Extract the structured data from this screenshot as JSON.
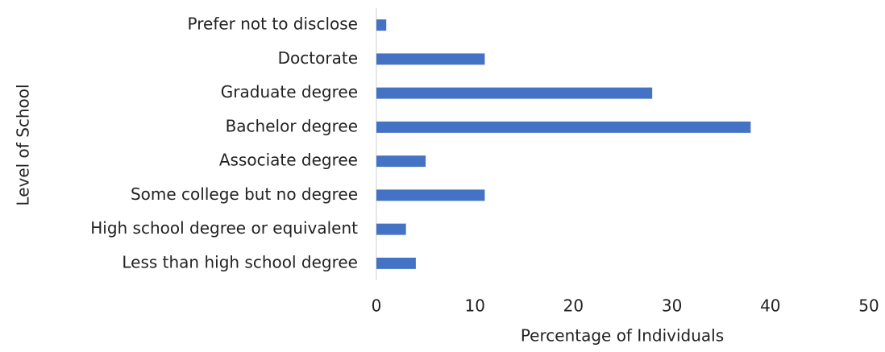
{
  "chart_data": {
    "type": "bar",
    "orientation": "horizontal",
    "xlabel": "Percentage of Individuals",
    "ylabel": "Level of School",
    "categories": [
      "Less than high school degree",
      "High school degree or equivalent",
      "Some college but no degree",
      "Associate degree",
      "Bachelor degree",
      "Graduate degree",
      "Doctorate",
      "Prefer not to disclose"
    ],
    "values": [
      4,
      3,
      11,
      5,
      38,
      28,
      11,
      1
    ],
    "color": "#4472c4",
    "xlim": [
      0,
      50
    ],
    "xticks": [
      0,
      10,
      20,
      30,
      40,
      50
    ],
    "grid": false
  }
}
